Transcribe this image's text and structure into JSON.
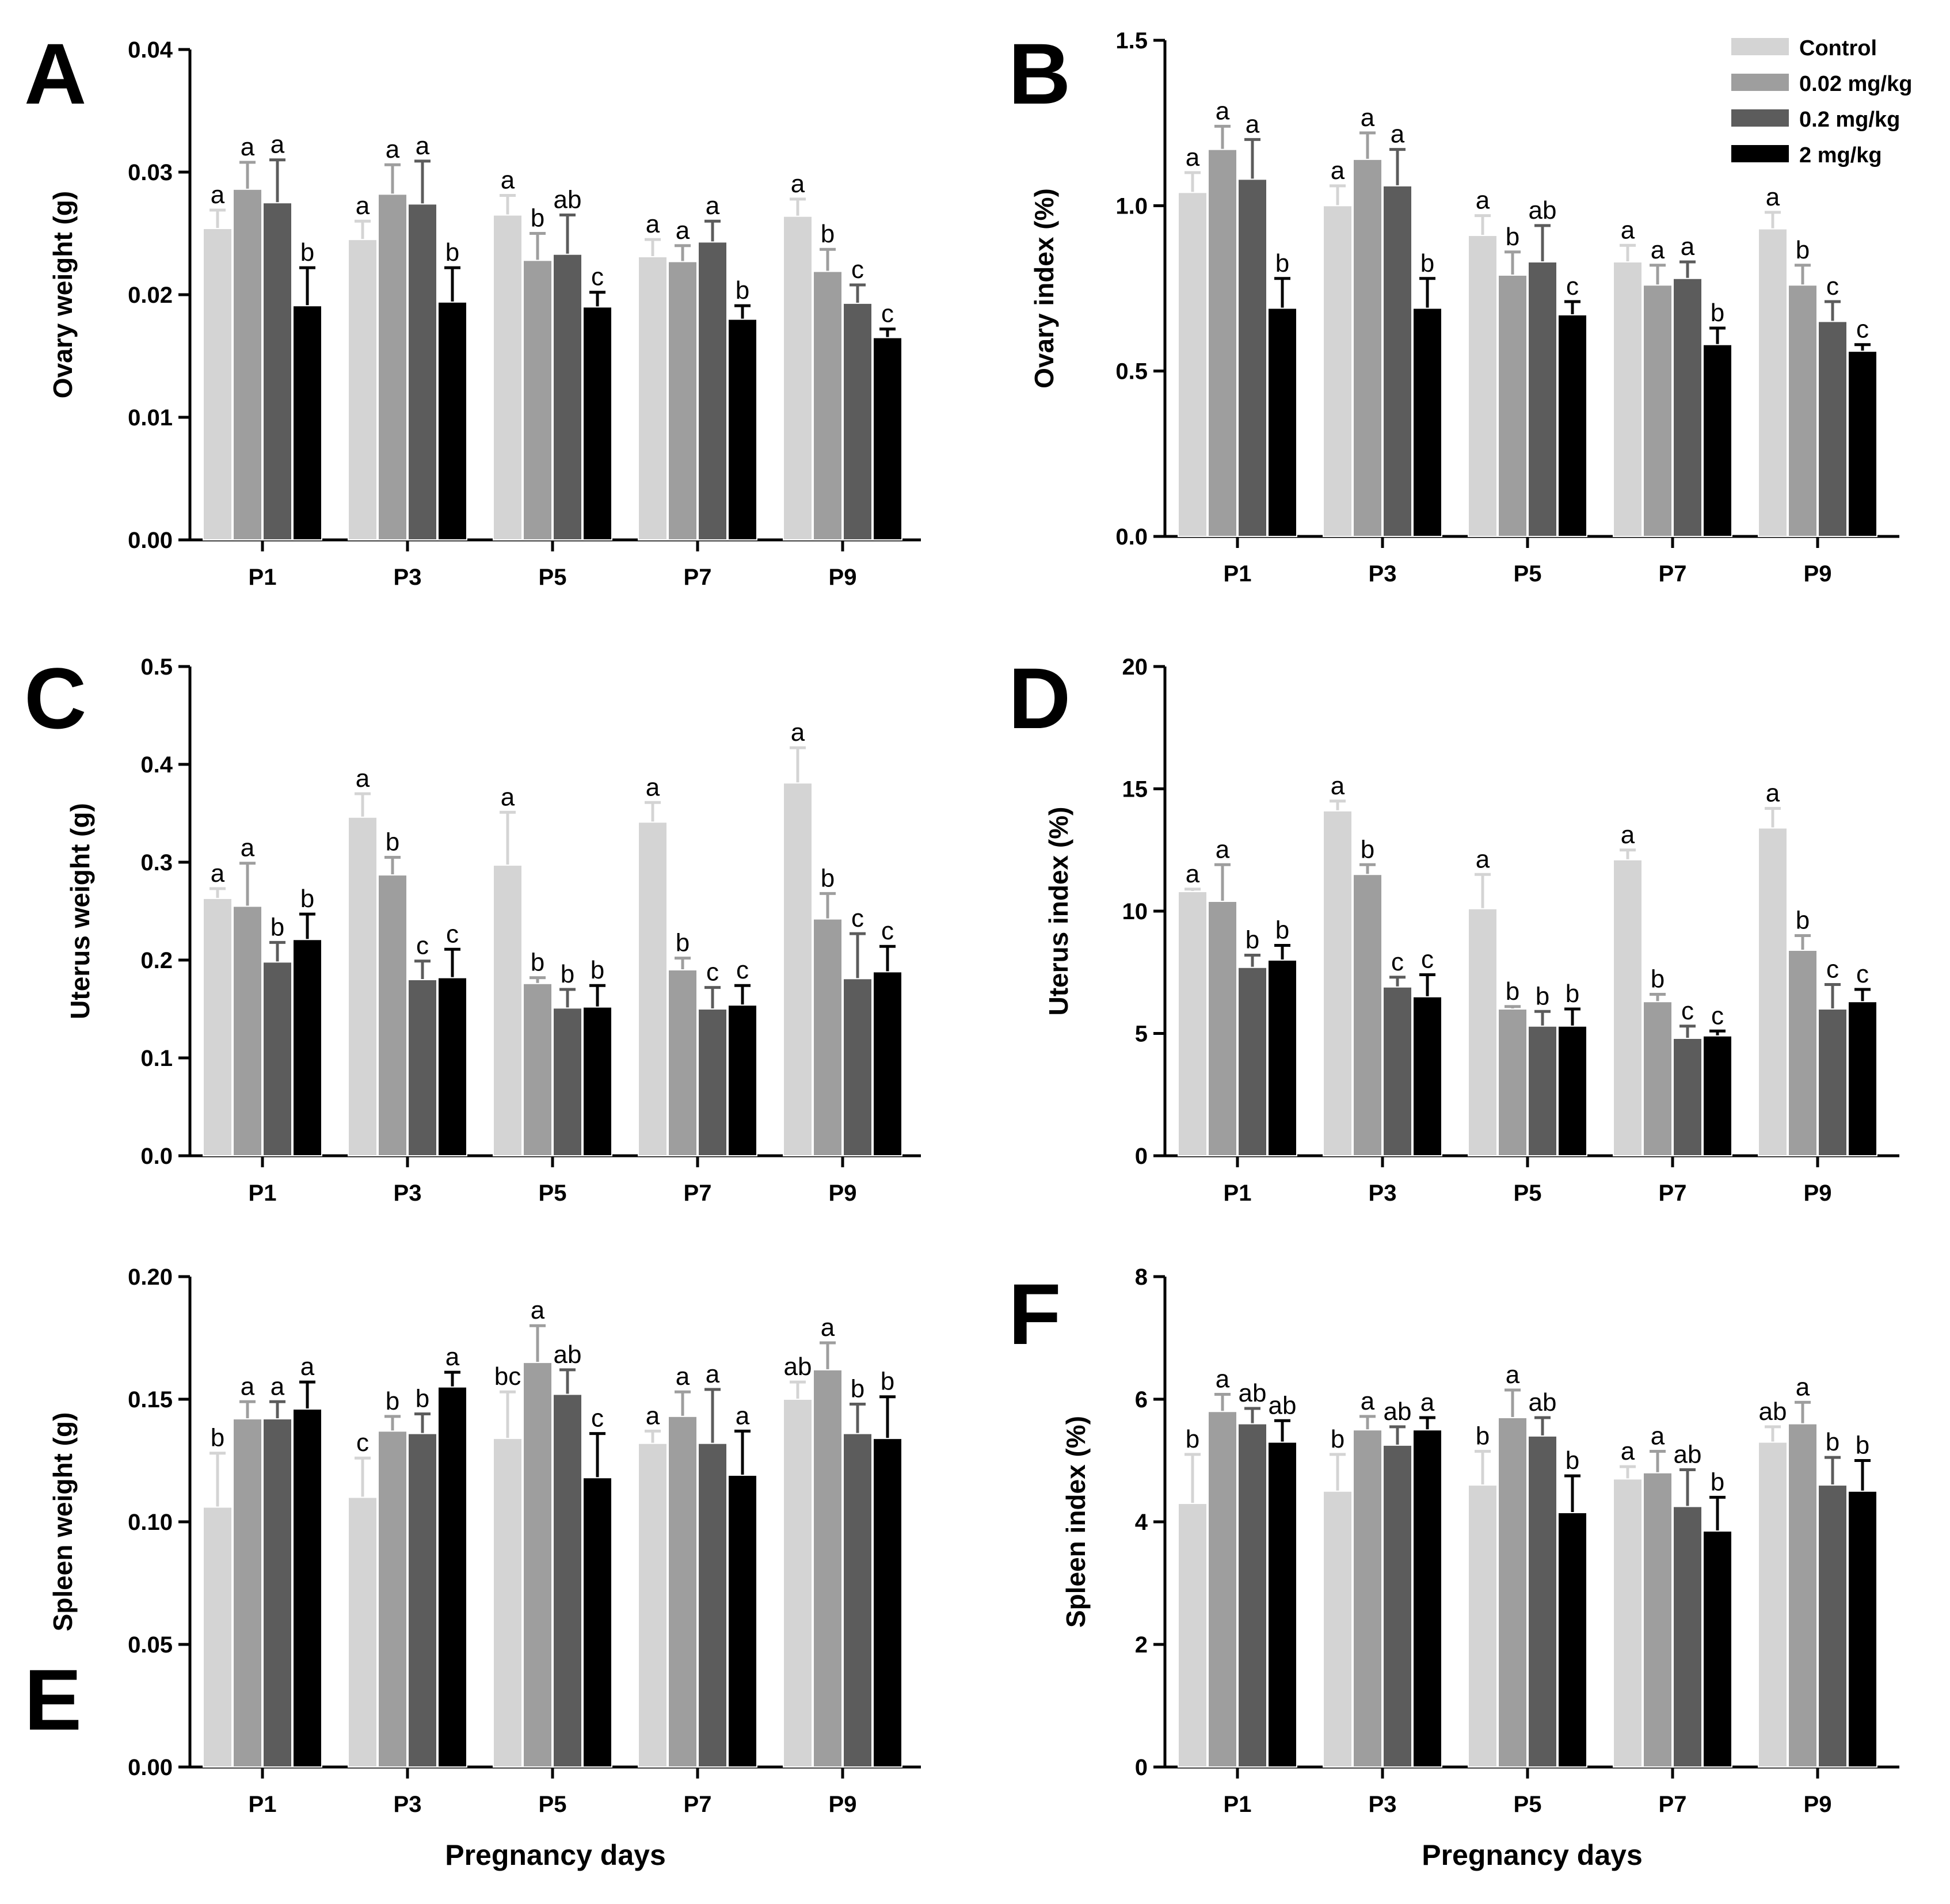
{
  "colors": {
    "Control": "#d4d4d4",
    "0.02 mg/kg": "#9e9e9e",
    "0.2 mg/kg": "#5c5c5c",
    "2 mg/kg": "#000000"
  },
  "legend": [
    "Control",
    "0.02 mg/kg",
    "0.2 mg/kg",
    "2 mg/kg"
  ],
  "chart_data": [
    {
      "panel": "A",
      "type": "bar",
      "ylabel": "Ovary weight (g)",
      "xlabel": "",
      "ylim": [
        0,
        0.04
      ],
      "yticks": [
        "0.00",
        "0.01",
        "0.02",
        "0.03",
        "0.04"
      ],
      "categories": [
        "P1",
        "P3",
        "P5",
        "P7",
        "P9"
      ],
      "series": [
        {
          "name": "Control",
          "values": [
            0.0254,
            0.0245,
            0.0265,
            0.0231,
            0.0264
          ],
          "errors": [
            0.0015,
            0.0015,
            0.0016,
            0.0014,
            0.0014
          ],
          "labels": [
            "a",
            "a",
            "a",
            "a",
            "a"
          ]
        },
        {
          "name": "0.02 mg/kg",
          "values": [
            0.0286,
            0.0282,
            0.0228,
            0.0227,
            0.0219
          ],
          "errors": [
            0.0022,
            0.0024,
            0.0022,
            0.0013,
            0.0018
          ],
          "labels": [
            "a",
            "a",
            "b",
            "a",
            "b"
          ]
        },
        {
          "name": "0.2 mg/kg",
          "values": [
            0.0275,
            0.0274,
            0.0233,
            0.0243,
            0.0193
          ],
          "errors": [
            0.0035,
            0.0035,
            0.0032,
            0.0017,
            0.0015
          ],
          "labels": [
            "a",
            "a",
            "ab",
            "a",
            "c"
          ]
        },
        {
          "name": "2 mg/kg",
          "values": [
            0.0191,
            0.0194,
            0.019,
            0.018,
            0.0165
          ],
          "errors": [
            0.0031,
            0.0028,
            0.0012,
            0.0011,
            0.0007
          ],
          "labels": [
            "b",
            "b",
            "c",
            "b",
            "c"
          ]
        }
      ]
    },
    {
      "panel": "B",
      "type": "bar",
      "ylabel": "Ovary index (%)",
      "xlabel": "",
      "ylim": [
        0,
        1.5
      ],
      "yticks": [
        "0.0",
        "0.5",
        "1.0",
        "1.5"
      ],
      "categories": [
        "P1",
        "P3",
        "P5",
        "P7",
        "P9"
      ],
      "series": [
        {
          "name": "Control",
          "values": [
            1.04,
            1.0,
            0.91,
            0.83,
            0.93
          ],
          "errors": [
            0.06,
            0.06,
            0.06,
            0.05,
            0.05
          ],
          "labels": [
            "a",
            "a",
            "a",
            "a",
            "a"
          ]
        },
        {
          "name": "0.02 mg/kg",
          "values": [
            1.17,
            1.14,
            0.79,
            0.76,
            0.76
          ],
          "errors": [
            0.07,
            0.08,
            0.07,
            0.06,
            0.06
          ],
          "labels": [
            "a",
            "a",
            "b",
            "a",
            "b"
          ]
        },
        {
          "name": "0.2 mg/kg",
          "values": [
            1.08,
            1.06,
            0.83,
            0.78,
            0.65
          ],
          "errors": [
            0.12,
            0.11,
            0.11,
            0.05,
            0.06
          ],
          "labels": [
            "a",
            "a",
            "ab",
            "a",
            "c"
          ]
        },
        {
          "name": "2 mg/kg",
          "values": [
            0.69,
            0.69,
            0.67,
            0.58,
            0.56
          ],
          "errors": [
            0.09,
            0.09,
            0.04,
            0.05,
            0.02
          ],
          "labels": [
            "b",
            "b",
            "c",
            "b",
            "c"
          ]
        }
      ]
    },
    {
      "panel": "C",
      "type": "bar",
      "ylabel": "Uterus weight (g)",
      "xlabel": "",
      "ylim": [
        0,
        0.5
      ],
      "yticks": [
        "0.0",
        "0.1",
        "0.2",
        "0.3",
        "0.4",
        "0.5"
      ],
      "categories": [
        "P1",
        "P3",
        "P5",
        "P7",
        "P9"
      ],
      "series": [
        {
          "name": "Control",
          "values": [
            0.263,
            0.346,
            0.297,
            0.341,
            0.381
          ],
          "errors": [
            0.01,
            0.024,
            0.054,
            0.02,
            0.036
          ],
          "labels": [
            "a",
            "a",
            "a",
            "a",
            "a"
          ]
        },
        {
          "name": "0.02 mg/kg",
          "values": [
            0.255,
            0.287,
            0.176,
            0.19,
            0.242
          ],
          "errors": [
            0.044,
            0.018,
            0.006,
            0.012,
            0.026
          ],
          "labels": [
            "a",
            "b",
            "b",
            "b",
            "b"
          ]
        },
        {
          "name": "0.2 mg/kg",
          "values": [
            0.198,
            0.18,
            0.151,
            0.15,
            0.181
          ],
          "errors": [
            0.02,
            0.019,
            0.019,
            0.022,
            0.046
          ],
          "labels": [
            "b",
            "c",
            "b",
            "c",
            "c"
          ]
        },
        {
          "name": "2 mg/kg",
          "values": [
            0.221,
            0.182,
            0.152,
            0.154,
            0.188
          ],
          "errors": [
            0.026,
            0.029,
            0.022,
            0.02,
            0.026
          ],
          "labels": [
            "b",
            "c",
            "b",
            "c",
            "c"
          ]
        }
      ]
    },
    {
      "panel": "D",
      "type": "bar",
      "ylabel": "Uterus index (%)",
      "xlabel": "",
      "ylim": [
        0,
        20
      ],
      "yticks": [
        "0",
        "5",
        "10",
        "15",
        "20"
      ],
      "categories": [
        "P1",
        "P3",
        "P5",
        "P7",
        "P9"
      ],
      "series": [
        {
          "name": "Control",
          "values": [
            10.8,
            14.1,
            10.1,
            12.1,
            13.4
          ],
          "errors": [
            0.1,
            0.4,
            1.4,
            0.4,
            0.8
          ],
          "labels": [
            "a",
            "a",
            "a",
            "a",
            "a"
          ]
        },
        {
          "name": "0.02 mg/kg",
          "values": [
            10.4,
            11.5,
            6.0,
            6.3,
            8.4
          ],
          "errors": [
            1.5,
            0.4,
            0.1,
            0.3,
            0.6
          ],
          "labels": [
            "a",
            "b",
            "b",
            "b",
            "b"
          ]
        },
        {
          "name": "0.2 mg/kg",
          "values": [
            7.7,
            6.9,
            5.3,
            4.8,
            6.0
          ],
          "errors": [
            0.5,
            0.4,
            0.6,
            0.5,
            1.0
          ],
          "labels": [
            "b",
            "c",
            "b",
            "c",
            "c"
          ]
        },
        {
          "name": "2 mg/kg",
          "values": [
            8.0,
            6.5,
            5.3,
            4.9,
            6.3
          ],
          "errors": [
            0.6,
            0.9,
            0.7,
            0.2,
            0.5
          ],
          "labels": [
            "b",
            "c",
            "b",
            "c",
            "c"
          ]
        }
      ]
    },
    {
      "panel": "E",
      "type": "bar",
      "ylabel": "Spleen weight (g)",
      "xlabel": "Pregnancy days",
      "ylim": [
        0,
        0.2
      ],
      "yticks": [
        "0.00",
        "0.05",
        "0.10",
        "0.15",
        "0.20"
      ],
      "categories": [
        "P1",
        "P3",
        "P5",
        "P7",
        "P9"
      ],
      "series": [
        {
          "name": "Control",
          "values": [
            0.106,
            0.11,
            0.134,
            0.132,
            0.15
          ],
          "errors": [
            0.022,
            0.016,
            0.019,
            0.005,
            0.007
          ],
          "labels": [
            "b",
            "c",
            "bc",
            "a",
            "ab"
          ]
        },
        {
          "name": "0.02 mg/kg",
          "values": [
            0.142,
            0.137,
            0.165,
            0.143,
            0.162
          ],
          "errors": [
            0.007,
            0.006,
            0.015,
            0.01,
            0.011
          ],
          "labels": [
            "a",
            "b",
            "a",
            "a",
            "a"
          ]
        },
        {
          "name": "0.2 mg/kg",
          "values": [
            0.142,
            0.136,
            0.152,
            0.132,
            0.136
          ],
          "errors": [
            0.007,
            0.008,
            0.01,
            0.022,
            0.012
          ],
          "labels": [
            "a",
            "b",
            "ab",
            "a",
            "b"
          ]
        },
        {
          "name": "2 mg/kg",
          "values": [
            0.146,
            0.155,
            0.118,
            0.119,
            0.134
          ],
          "errors": [
            0.011,
            0.006,
            0.018,
            0.018,
            0.017
          ],
          "labels": [
            "a",
            "a",
            "c",
            "a",
            "b"
          ]
        }
      ]
    },
    {
      "panel": "F",
      "type": "bar",
      "ylabel": "Spleen index (%)",
      "xlabel": "Pregnancy days",
      "ylim": [
        0,
        8
      ],
      "yticks": [
        "0",
        "2",
        "4",
        "6",
        "8"
      ],
      "categories": [
        "P1",
        "P3",
        "P5",
        "P7",
        "P9"
      ],
      "series": [
        {
          "name": "Control",
          "values": [
            4.3,
            4.5,
            4.6,
            4.7,
            5.3
          ],
          "errors": [
            0.8,
            0.6,
            0.55,
            0.2,
            0.25
          ],
          "labels": [
            "b",
            "b",
            "b",
            "a",
            "ab"
          ]
        },
        {
          "name": "0.02 mg/kg",
          "values": [
            5.8,
            5.5,
            5.7,
            4.8,
            5.6
          ],
          "errors": [
            0.28,
            0.22,
            0.45,
            0.35,
            0.35
          ],
          "labels": [
            "a",
            "a",
            "a",
            "a",
            "a"
          ]
        },
        {
          "name": "0.2 mg/kg",
          "values": [
            5.6,
            5.25,
            5.4,
            4.25,
            4.6
          ],
          "errors": [
            0.25,
            0.3,
            0.3,
            0.6,
            0.45
          ],
          "labels": [
            "ab",
            "ab",
            "ab",
            "ab",
            "b"
          ]
        },
        {
          "name": "2 mg/kg",
          "values": [
            5.3,
            5.5,
            4.15,
            3.85,
            4.5
          ],
          "errors": [
            0.35,
            0.2,
            0.6,
            0.55,
            0.5
          ],
          "labels": [
            "ab",
            "a",
            "b",
            "b",
            "b"
          ]
        }
      ]
    }
  ]
}
